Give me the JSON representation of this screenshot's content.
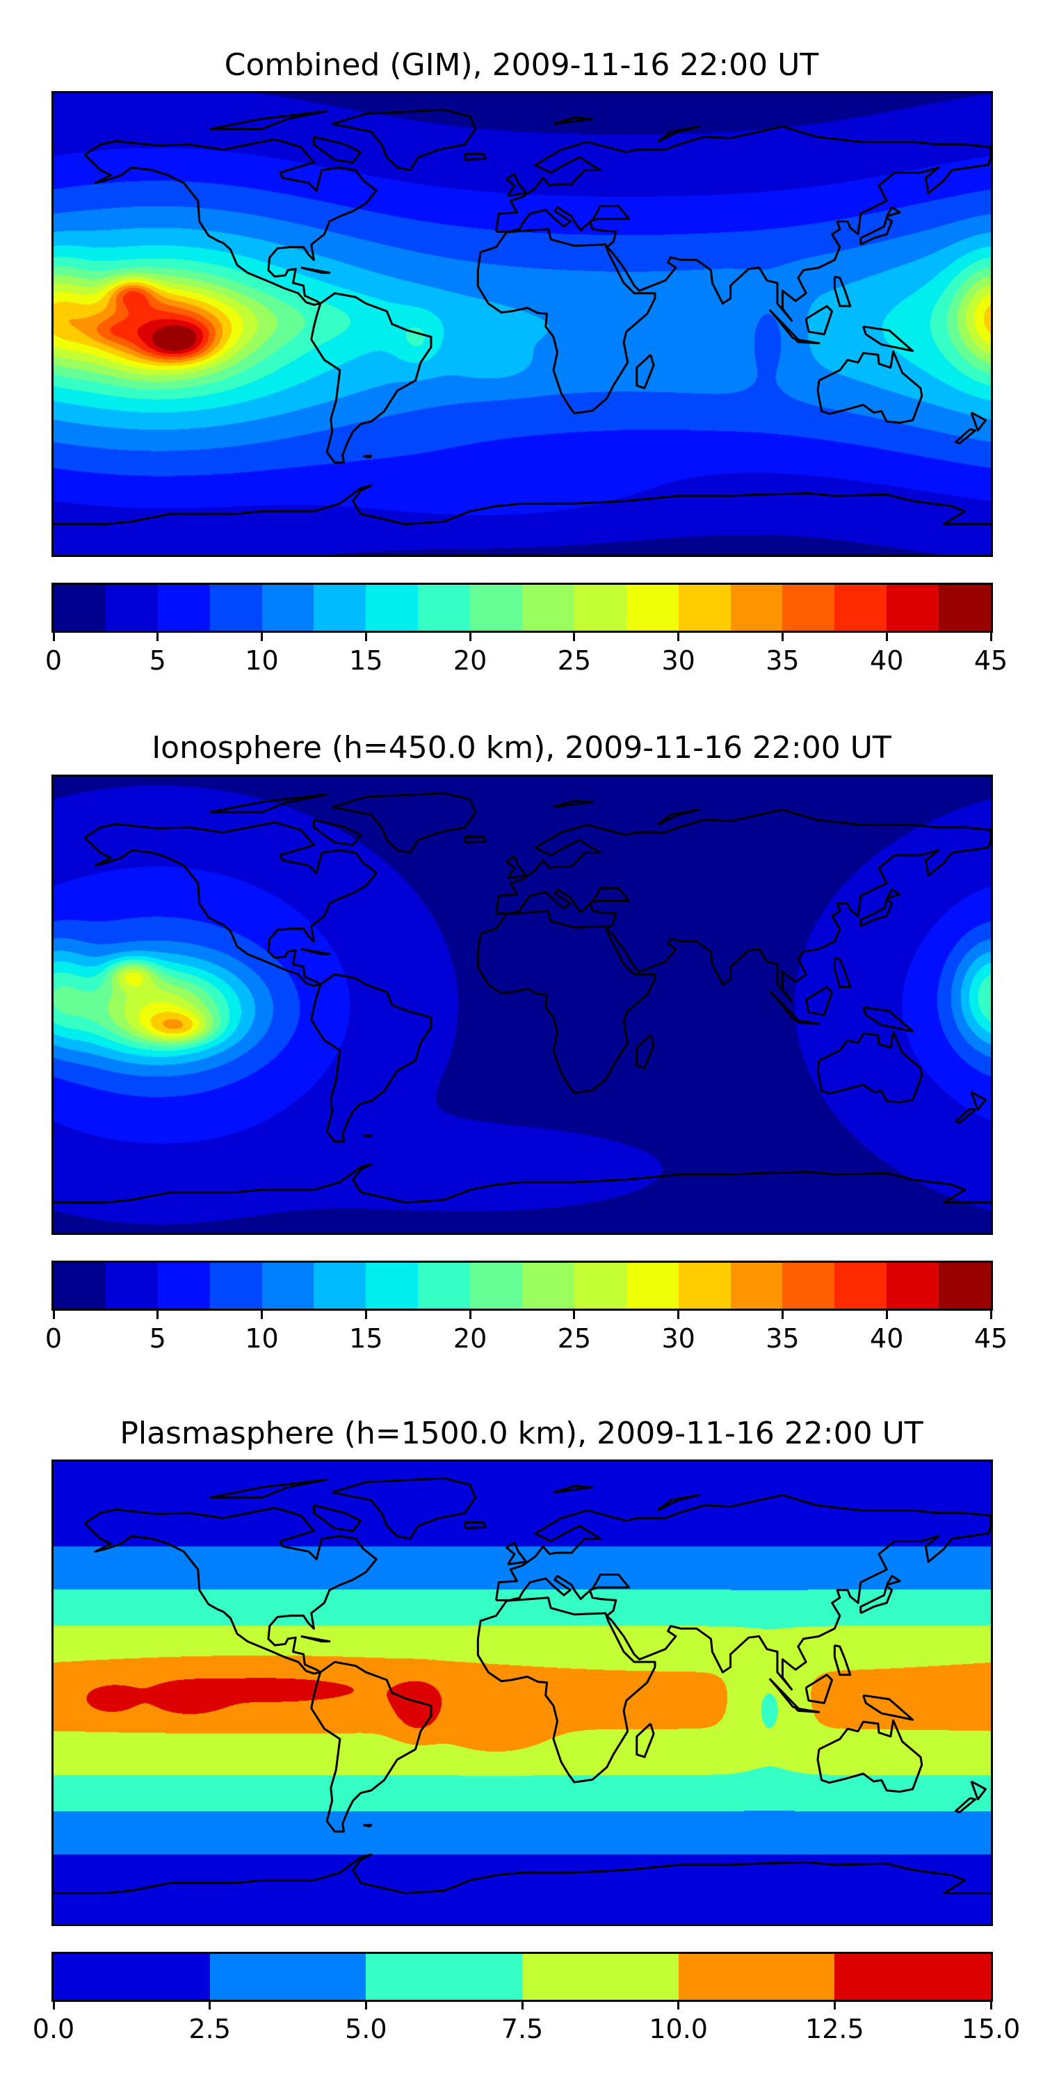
{
  "panels": [
    {
      "id": "combined",
      "title": "Combined (GIM), 2009-11-16 22:00 UT",
      "colorbar": {
        "range": [
          0,
          45
        ],
        "ticks": [
          "0",
          "5",
          "10",
          "15",
          "20",
          "25",
          "30",
          "35",
          "40",
          "45"
        ],
        "colors": [
          "#00008f",
          "#0000d6",
          "#0010ff",
          "#0048ff",
          "#0080ff",
          "#00bbff",
          "#00eeee",
          "#36ffc6",
          "#66ff96",
          "#9aff5e",
          "#c4ff36",
          "#eeff08",
          "#ffcc00",
          "#ff9400",
          "#ff5e00",
          "#ff2a00",
          "#dd0000",
          "#9b0000"
        ]
      }
    },
    {
      "id": "ionosphere",
      "title": "Ionosphere  (h=450.0 km), 2009-11-16 22:00 UT",
      "colorbar": {
        "range": [
          0,
          45
        ],
        "ticks": [
          "0",
          "5",
          "10",
          "15",
          "20",
          "25",
          "30",
          "35",
          "40",
          "45"
        ],
        "colors": [
          "#00008f",
          "#0000d6",
          "#0010ff",
          "#0048ff",
          "#0080ff",
          "#00bbff",
          "#00eeee",
          "#36ffc6",
          "#66ff96",
          "#9aff5e",
          "#c4ff36",
          "#eeff08",
          "#ffcc00",
          "#ff9400",
          "#ff5e00",
          "#ff2a00",
          "#dd0000",
          "#9b0000"
        ]
      }
    },
    {
      "id": "plasmasphere",
      "title": "Plasmasphere (h=1500.0 km), 2009-11-16 22:00 UT",
      "colorbar": {
        "range": [
          0,
          15
        ],
        "ticks": [
          "0.0",
          "2.5",
          "5.0",
          "7.5",
          "10.0",
          "12.5",
          "15.0"
        ],
        "colors": [
          "#0000dd",
          "#0080ff",
          "#36ffc6",
          "#c4ff36",
          "#ff9000",
          "#dd0000"
        ]
      }
    }
  ]
}
